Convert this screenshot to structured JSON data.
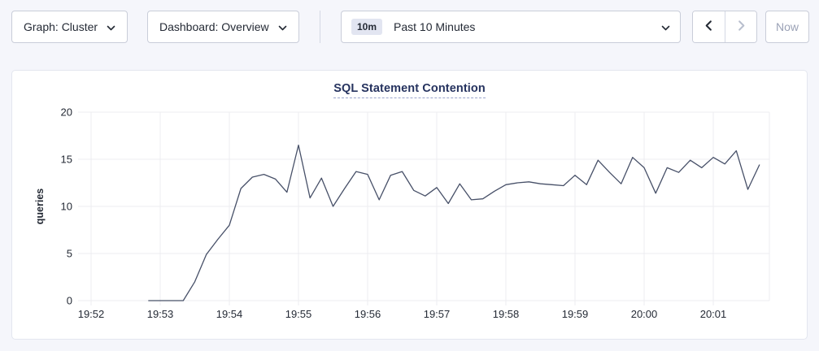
{
  "toolbar": {
    "graph_dropdown": {
      "label": "Graph: Cluster"
    },
    "dashboard_dropdown": {
      "label": "Dashboard: Overview"
    },
    "time_range": {
      "badge": "10m",
      "label": "Past 10 Minutes"
    },
    "nav": {
      "prev_enabled": true,
      "next_enabled": false
    },
    "now_button": {
      "label": "Now",
      "enabled": false
    },
    "icons": {
      "dropdown_caret": "chevron-down",
      "prev": "chevron-left",
      "next": "chevron-right"
    }
  },
  "chart": {
    "title": "SQL Statement Contention"
  },
  "chart_data": {
    "type": "line",
    "title": "SQL Statement Contention",
    "xlabel": "",
    "ylabel": "queries",
    "ylim": [
      0,
      20
    ],
    "y_ticks": [
      0,
      5,
      10,
      15,
      20
    ],
    "x_ticks": [
      "19:52",
      "19:53",
      "19:54",
      "19:55",
      "19:56",
      "19:57",
      "19:58",
      "19:59",
      "20:00",
      "20:01"
    ],
    "grid": true,
    "legend": "none",
    "line_color": "#475068",
    "series": [
      {
        "name": "queries",
        "points": [
          [
            "19:52:50",
            0
          ],
          [
            "19:53:00",
            0
          ],
          [
            "19:53:10",
            0
          ],
          [
            "19:53:20",
            0
          ],
          [
            "19:53:30",
            2.0
          ],
          [
            "19:53:40",
            4.9
          ],
          [
            "19:53:50",
            6.5
          ],
          [
            "19:54:00",
            8.0
          ],
          [
            "19:54:10",
            11.9
          ],
          [
            "19:54:20",
            13.1
          ],
          [
            "19:54:30",
            13.4
          ],
          [
            "19:54:40",
            12.9
          ],
          [
            "19:54:50",
            11.5
          ],
          [
            "19:55:00",
            16.5
          ],
          [
            "19:55:10",
            10.9
          ],
          [
            "19:55:20",
            13.0
          ],
          [
            "19:55:30",
            10.0
          ],
          [
            "19:55:40",
            11.9
          ],
          [
            "19:55:50",
            13.7
          ],
          [
            "19:56:00",
            13.4
          ],
          [
            "19:56:10",
            10.7
          ],
          [
            "19:56:20",
            13.3
          ],
          [
            "19:56:30",
            13.7
          ],
          [
            "19:56:40",
            11.7
          ],
          [
            "19:56:50",
            11.1
          ],
          [
            "19:57:00",
            12.0
          ],
          [
            "19:57:10",
            10.3
          ],
          [
            "19:57:20",
            12.4
          ],
          [
            "19:57:30",
            10.7
          ],
          [
            "19:57:40",
            10.8
          ],
          [
            "19:57:50",
            11.6
          ],
          [
            "19:58:00",
            12.3
          ],
          [
            "19:58:10",
            12.5
          ],
          [
            "19:58:20",
            12.6
          ],
          [
            "19:58:30",
            12.4
          ],
          [
            "19:58:40",
            12.3
          ],
          [
            "19:58:50",
            12.2
          ],
          [
            "19:59:00",
            13.3
          ],
          [
            "19:59:10",
            12.3
          ],
          [
            "19:59:20",
            14.9
          ],
          [
            "19:59:30",
            13.6
          ],
          [
            "19:59:40",
            12.4
          ],
          [
            "19:59:50",
            15.2
          ],
          [
            "20:00:00",
            14.1
          ],
          [
            "20:00:10",
            11.4
          ],
          [
            "20:00:20",
            14.1
          ],
          [
            "20:00:30",
            13.6
          ],
          [
            "20:00:40",
            14.9
          ],
          [
            "20:00:50",
            14.1
          ],
          [
            "20:01:00",
            15.2
          ],
          [
            "20:01:10",
            14.5
          ],
          [
            "20:01:20",
            15.9
          ],
          [
            "20:01:30",
            11.8
          ],
          [
            "20:01:40",
            14.4
          ]
        ]
      }
    ]
  },
  "colors": {
    "accent_navy": "#242a35",
    "title_navy": "#26335f",
    "line": "#475068",
    "page_bg": "#f5f6fb",
    "panel_border": "#e3e6ef",
    "control_border": "#c9cdd9",
    "badge_bg": "#e2e5f1",
    "disabled": "#b9bfce",
    "grid": "#ececf1"
  }
}
